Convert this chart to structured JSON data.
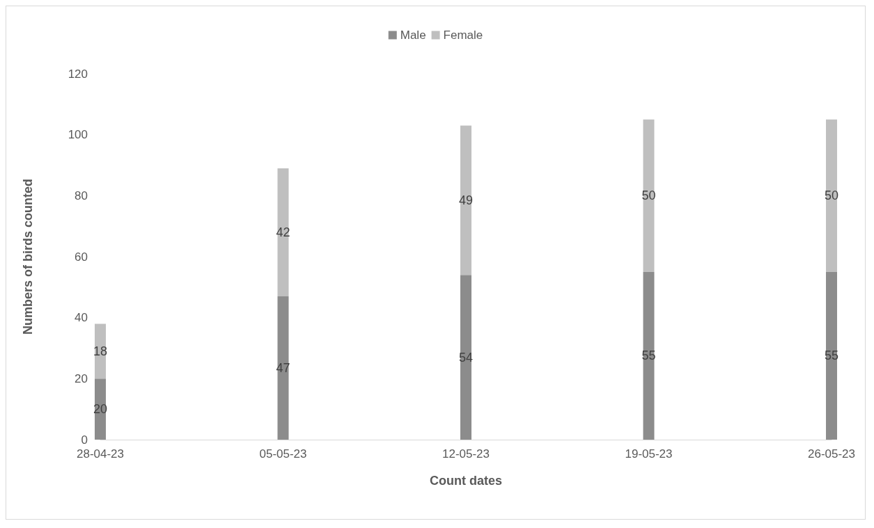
{
  "chart_data": {
    "type": "bar",
    "stacked": true,
    "xlabel": "Count dates",
    "ylabel": "Numbers of birds counted",
    "categories": [
      "28-04-23",
      "05-05-23",
      "12-05-23",
      "19-05-23",
      "26-05-23"
    ],
    "series": [
      {
        "name": "Male",
        "color": "#8c8c8c",
        "values": [
          20,
          47,
          54,
          55,
          55
        ]
      },
      {
        "name": "Female",
        "color": "#bfbfbf",
        "values": [
          18,
          42,
          49,
          50,
          50
        ]
      }
    ],
    "ylim": [
      0,
      120
    ],
    "yticks": [
      0,
      20,
      40,
      60,
      80,
      100,
      120
    ],
    "grid": false,
    "legend": "top",
    "data_labels": true
  }
}
